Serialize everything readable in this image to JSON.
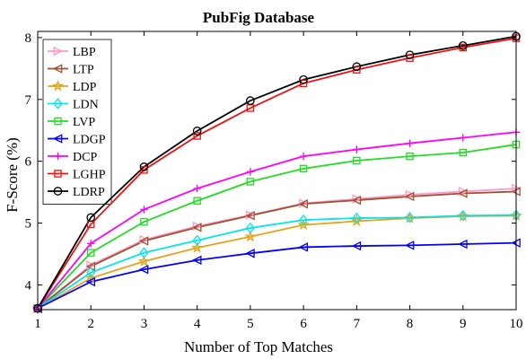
{
  "chart_data": {
    "type": "line",
    "title": "PubFig Database",
    "xlabel": "Number of Top Matches",
    "ylabel": "F-Score (%)",
    "x": [
      1,
      2,
      3,
      4,
      5,
      6,
      7,
      8,
      9,
      10
    ],
    "xlim": [
      1,
      10
    ],
    "ylim": [
      3.6,
      8.1
    ],
    "xticks": [
      "1",
      "2",
      "3",
      "4",
      "5",
      "6",
      "7",
      "8",
      "9",
      "10"
    ],
    "yticks": [
      4,
      5,
      6,
      7,
      8
    ],
    "grid": false,
    "legend_position": "top-left",
    "series": [
      {
        "name": "LBP",
        "color": "#ff99cc",
        "marker": "triangle-right",
        "values": [
          3.62,
          4.32,
          4.73,
          4.95,
          5.13,
          5.32,
          5.39,
          5.46,
          5.51,
          5.56
        ]
      },
      {
        "name": "LTP",
        "color": "#a0522d",
        "marker": "triangle-left",
        "values": [
          3.62,
          4.3,
          4.71,
          4.93,
          5.12,
          5.31,
          5.37,
          5.43,
          5.48,
          5.51
        ]
      },
      {
        "name": "LDP",
        "color": "#e8a317",
        "marker": "star",
        "values": [
          3.62,
          4.11,
          4.38,
          4.6,
          4.78,
          4.97,
          5.03,
          5.08,
          5.11,
          5.12
        ]
      },
      {
        "name": "LDN",
        "color": "#00e5ee",
        "marker": "diamond",
        "values": [
          3.62,
          4.2,
          4.52,
          4.72,
          4.92,
          5.05,
          5.08,
          5.09,
          5.12,
          5.13
        ]
      },
      {
        "name": "LVP",
        "color": "#22dd22",
        "marker": "square",
        "values": [
          3.62,
          4.52,
          5.02,
          5.36,
          5.67,
          5.88,
          6.01,
          6.08,
          6.14,
          6.27
        ]
      },
      {
        "name": "LDGP",
        "color": "#0000ff",
        "marker": "triangle-left",
        "values": [
          3.62,
          4.05,
          4.25,
          4.4,
          4.51,
          4.61,
          4.63,
          4.64,
          4.66,
          4.68
        ]
      },
      {
        "name": "DCP",
        "color": "#ff00ff",
        "marker": "plus",
        "values": [
          3.62,
          4.67,
          5.22,
          5.56,
          5.83,
          6.08,
          6.19,
          6.29,
          6.38,
          6.47
        ]
      },
      {
        "name": "LGHP",
        "color": "#ee1111",
        "marker": "square",
        "values": [
          3.62,
          4.98,
          5.86,
          6.41,
          6.86,
          7.26,
          7.48,
          7.67,
          7.84,
          7.99
        ]
      },
      {
        "name": "LDRP",
        "color": "#000000",
        "marker": "circle",
        "values": [
          3.62,
          5.09,
          5.91,
          6.49,
          6.98,
          7.32,
          7.53,
          7.72,
          7.87,
          8.02
        ]
      }
    ]
  }
}
